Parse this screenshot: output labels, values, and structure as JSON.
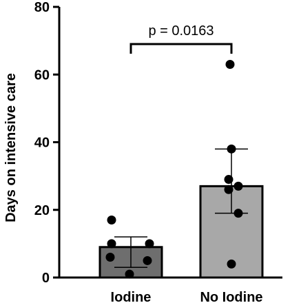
{
  "chart_data": {
    "type": "bar",
    "ylabel": "Days on intensive care",
    "xlabel": "",
    "categories": [
      "Iodine",
      "No Iodine"
    ],
    "ylim": [
      0,
      80
    ],
    "yticks": [
      0,
      20,
      40,
      60,
      80
    ],
    "grid": false,
    "bars": [
      {
        "category": "Iodine",
        "mean": 9,
        "sd_lower": 3,
        "sd_upper": 12,
        "fill": "#6e6e6e",
        "points": [
          1,
          5,
          6,
          10,
          10,
          17
        ]
      },
      {
        "category": "No Iodine",
        "mean": 27,
        "sd_lower": 19,
        "sd_upper": 38,
        "fill": "#a8a8a8",
        "points": [
          4,
          19,
          26,
          27,
          29,
          38,
          63
        ]
      }
    ],
    "annotations": [
      {
        "text": "p = 0.0163",
        "between": [
          "Iodine",
          "No Iodine"
        ],
        "bracket_y": 69
      }
    ]
  }
}
